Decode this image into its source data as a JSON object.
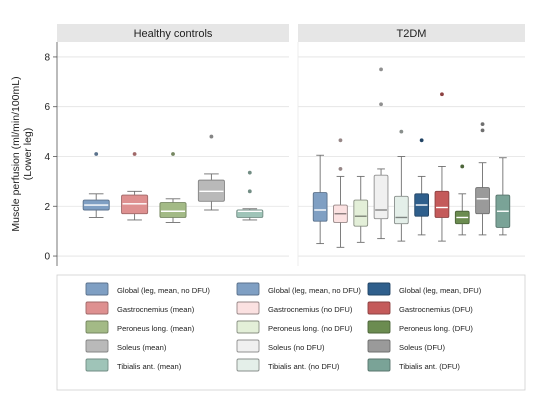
{
  "chart_data": {
    "type": "box",
    "ylabel": "Muscle perfusion (ml/min/100mL)\n(Lower leg)",
    "ylim": [
      -0.4,
      8.6
    ],
    "yticks": [
      0,
      2,
      4,
      6,
      8
    ],
    "grid": true,
    "legend_position": "bottom",
    "panels": [
      {
        "title": "Healthy controls",
        "boxes": [
          {
            "series": "Global (leg, mean, no DFU)",
            "min": 1.55,
            "q1": 1.85,
            "median": 2.05,
            "q3": 2.25,
            "max": 2.5,
            "outliers": [
              4.1
            ],
            "color": "#7f9fc3"
          },
          {
            "series": "Gastrocnemius (mean)",
            "min": 1.45,
            "q1": 1.7,
            "median": 2.1,
            "q3": 2.45,
            "max": 2.6,
            "outliers": [
              4.1
            ],
            "color": "#de9090"
          },
          {
            "series": "Peroneus long. (mean)",
            "min": 1.35,
            "q1": 1.55,
            "median": 1.8,
            "q3": 2.15,
            "max": 2.3,
            "outliers": [
              4.1
            ],
            "color": "#a3ba86"
          },
          {
            "series": "Soleus (mean)",
            "min": 1.85,
            "q1": 2.2,
            "median": 2.6,
            "q3": 3.05,
            "max": 3.3,
            "outliers": [
              4.8
            ],
            "color": "#b9b9b9"
          },
          {
            "series": "Tibialis ant. (mean)",
            "min": 1.45,
            "q1": 1.55,
            "median": 1.8,
            "q3": 1.85,
            "max": 1.9,
            "outliers": [
              2.6,
              3.35
            ],
            "color": "#9fc4b8"
          }
        ]
      },
      {
        "title": "T2DM",
        "boxes": [
          {
            "series": "Global (leg, mean, no DFU)",
            "min": 0.5,
            "q1": 1.4,
            "median": 1.85,
            "q3": 2.55,
            "max": 4.05,
            "outliers": [],
            "color": "#7f9fc3"
          },
          {
            "series": "Gastrocnemius (no DFU)",
            "min": 0.35,
            "q1": 1.35,
            "median": 1.7,
            "q3": 2.05,
            "max": 3.2,
            "outliers": [
              3.5,
              4.65
            ],
            "color": "#fbe1e1"
          },
          {
            "series": "Peroneus long. (no DFU)",
            "min": 0.55,
            "q1": 1.2,
            "median": 1.6,
            "q3": 2.25,
            "max": 3.2,
            "outliers": [],
            "color": "#e3efd8"
          },
          {
            "series": "Soleus (no DFU)",
            "min": 0.7,
            "q1": 1.5,
            "median": 1.85,
            "q3": 3.25,
            "max": 3.5,
            "outliers": [
              6.1,
              7.5
            ],
            "color": "#f0f0f0"
          },
          {
            "series": "Tibialis ant. (no DFU)",
            "min": 0.6,
            "q1": 1.3,
            "median": 1.55,
            "q3": 2.4,
            "max": 4.0,
            "outliers": [
              5.0
            ],
            "color": "#e4efe9"
          },
          {
            "series": "Global (leg, mean, DFU)",
            "min": 0.85,
            "q1": 1.6,
            "median": 2.05,
            "q3": 2.5,
            "max": 3.2,
            "outliers": [
              4.65
            ],
            "color": "#2f5f8c"
          },
          {
            "series": "Gastrocnemius (DFU)",
            "min": 0.6,
            "q1": 1.55,
            "median": 1.95,
            "q3": 2.6,
            "max": 3.6,
            "outliers": [
              6.5
            ],
            "color": "#c45a5a"
          },
          {
            "series": "Peroneus long. (DFU)",
            "min": 0.85,
            "q1": 1.3,
            "median": 1.55,
            "q3": 1.8,
            "max": 2.5,
            "outliers": [
              3.6
            ],
            "color": "#6b8c50"
          },
          {
            "series": "Soleus (DFU)",
            "min": 0.85,
            "q1": 1.7,
            "median": 2.3,
            "q3": 2.75,
            "max": 3.75,
            "outliers": [
              5.05,
              5.3
            ],
            "color": "#9a9a9a"
          },
          {
            "series": "Tibialis ant. (DFU)",
            "min": 0.85,
            "q1": 1.15,
            "median": 1.8,
            "q3": 2.45,
            "max": 3.95,
            "outliers": [],
            "color": "#7aa397"
          }
        ]
      }
    ],
    "legend": [
      [
        "Global (leg, mean, no DFU)",
        "Global (leg, mean, no DFU)",
        "Global (leg, mean, DFU)"
      ],
      [
        "Gastrocnemius (mean)",
        "Gastrocnemius (no DFU)",
        "Gastrocnemius (DFU)"
      ],
      [
        "Peroneus long. (mean)",
        "Peroneus long. (no DFU)",
        "Peroneus long. (DFU)"
      ],
      [
        "Soleus (mean)",
        "Soleus (no DFU)",
        "Soleus (DFU)"
      ],
      [
        "Tibialis ant. (mean)",
        "Tibialis ant. (no DFU)",
        "Tibialis ant. (DFU)"
      ]
    ],
    "legend_colors": [
      [
        "#7f9fc3",
        "#7f9fc3",
        "#2f5f8c"
      ],
      [
        "#de9090",
        "#fbe1e1",
        "#c45a5a"
      ],
      [
        "#a3ba86",
        "#e3efd8",
        "#6b8c50"
      ],
      [
        "#b9b9b9",
        "#f0f0f0",
        "#9a9a9a"
      ],
      [
        "#9fc4b8",
        "#e4efe9",
        "#7aa397"
      ]
    ],
    "colors": {
      "panel_header": "#e6e6e6",
      "grid": "#e2e2e2",
      "whisker": "#6f6f6f",
      "outlier_default": "#5f8f80",
      "median": "#ffffff"
    }
  }
}
